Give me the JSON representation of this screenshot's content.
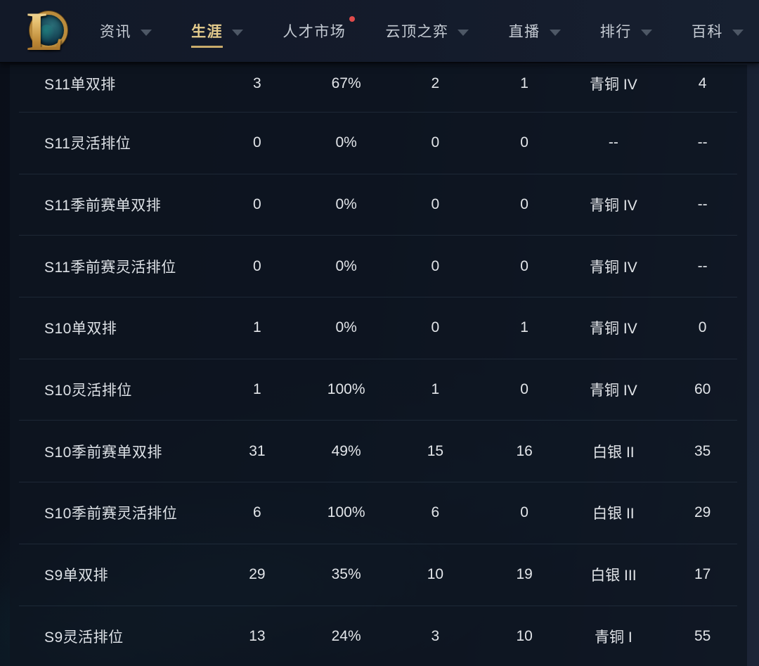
{
  "nav": {
    "logo": {
      "name": "league-of-legends",
      "letter": "L"
    },
    "items": [
      {
        "id": "news",
        "label": "资讯",
        "active": false,
        "dropdown": true,
        "badge": false
      },
      {
        "id": "career",
        "label": "生涯",
        "active": true,
        "dropdown": true,
        "badge": false
      },
      {
        "id": "talent-market",
        "label": "人才市场",
        "active": false,
        "dropdown": false,
        "badge": true
      },
      {
        "id": "tft",
        "label": "云顶之弈",
        "active": false,
        "dropdown": true,
        "badge": false
      },
      {
        "id": "live",
        "label": "直播",
        "active": false,
        "dropdown": true,
        "badge": false
      },
      {
        "id": "rankings",
        "label": "排行",
        "active": false,
        "dropdown": true,
        "badge": false
      },
      {
        "id": "wiki",
        "label": "百科",
        "active": false,
        "dropdown": true,
        "badge": false
      }
    ]
  },
  "table": {
    "rows": [
      {
        "season": "S11单双排",
        "games": "3",
        "win_rate": "67%",
        "wins": "2",
        "losses": "1",
        "rank": "青铜 IV",
        "points": "4"
      },
      {
        "season": "S11灵活排位",
        "games": "0",
        "win_rate": "0%",
        "wins": "0",
        "losses": "0",
        "rank": "--",
        "points": "--"
      },
      {
        "season": "S11季前赛单双排",
        "games": "0",
        "win_rate": "0%",
        "wins": "0",
        "losses": "0",
        "rank": "青铜 IV",
        "points": "--"
      },
      {
        "season": "S11季前赛灵活排位",
        "games": "0",
        "win_rate": "0%",
        "wins": "0",
        "losses": "0",
        "rank": "青铜 IV",
        "points": "--"
      },
      {
        "season": "S10单双排",
        "games": "1",
        "win_rate": "0%",
        "wins": "0",
        "losses": "1",
        "rank": "青铜 IV",
        "points": "0"
      },
      {
        "season": "S10灵活排位",
        "games": "1",
        "win_rate": "100%",
        "wins": "1",
        "losses": "0",
        "rank": "青铜 IV",
        "points": "60"
      },
      {
        "season": "S10季前赛单双排",
        "games": "31",
        "win_rate": "49%",
        "wins": "15",
        "losses": "16",
        "rank": "白银 II",
        "points": "35"
      },
      {
        "season": "S10季前赛灵活排位",
        "games": "6",
        "win_rate": "100%",
        "wins": "6",
        "losses": "0",
        "rank": "白银 II",
        "points": "29"
      },
      {
        "season": "S9单双排",
        "games": "29",
        "win_rate": "35%",
        "wins": "10",
        "losses": "19",
        "rank": "白银 III",
        "points": "17"
      },
      {
        "season": "S9灵活排位",
        "games": "13",
        "win_rate": "24%",
        "wins": "3",
        "losses": "10",
        "rank": "青铜 I",
        "points": "55"
      }
    ]
  },
  "colors": {
    "nav_background": "#141b2b",
    "page_background": "#0c1220",
    "table_background": "#0e1521",
    "accent_gold": "#d9c389",
    "badge_red": "#e04b4b",
    "row_text": "#e2e5e9",
    "teal_glow": "#20707e"
  }
}
